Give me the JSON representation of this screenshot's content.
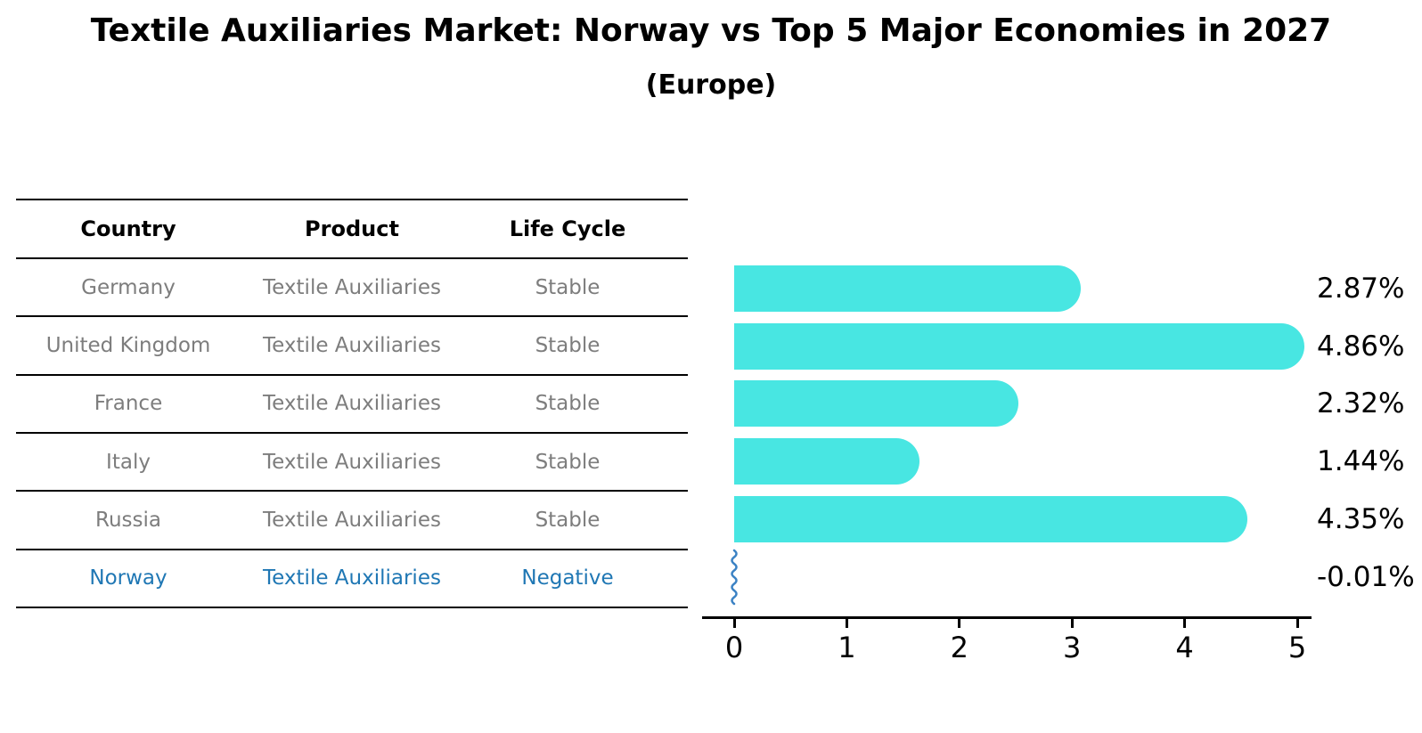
{
  "title": "Textile Auxiliaries Market: Norway vs Top 5 Major Economies in 2027",
  "subtitle": "(Europe)",
  "table": {
    "headers": [
      "Country",
      "Product",
      "Life Cycle"
    ],
    "rows": [
      {
        "country": "Germany",
        "product": "Textile Auxiliaries",
        "life_cycle": "Stable",
        "highlight": false
      },
      {
        "country": "United Kingdom",
        "product": "Textile Auxiliaries",
        "life_cycle": "Stable",
        "highlight": false
      },
      {
        "country": "France",
        "product": "Textile Auxiliaries",
        "life_cycle": "Stable",
        "highlight": false
      },
      {
        "country": "Italy",
        "product": "Textile Auxiliaries",
        "life_cycle": "Stable",
        "highlight": false
      },
      {
        "country": "Russia",
        "product": "Textile Auxiliaries",
        "life_cycle": "Stable",
        "highlight": false
      },
      {
        "country": "Norway",
        "product": "Textile Auxiliaries",
        "life_cycle": "Negative",
        "highlight": true
      }
    ]
  },
  "chart_data": {
    "type": "bar",
    "orientation": "horizontal",
    "title": "Textile Auxiliaries Market: Norway vs Top 5 Major Economies in 2027 (Europe)",
    "categories": [
      "Germany",
      "United Kingdom",
      "France",
      "Italy",
      "Russia",
      "Norway"
    ],
    "values": [
      2.87,
      4.86,
      2.32,
      1.44,
      4.35,
      -0.01
    ],
    "value_labels": [
      "2.87%",
      "4.86%",
      "2.32%",
      "1.44%",
      "4.35%",
      "-0.01%"
    ],
    "xlim": [
      0,
      5
    ],
    "xticks": [
      0,
      1,
      2,
      3,
      4,
      5
    ],
    "xlabel": "",
    "ylabel": "",
    "grid": false,
    "legend_position": "none",
    "bar_color": "#48e6e2",
    "negative_marker": "squiggle",
    "negative_marker_color": "#3b82c4"
  },
  "colors": {
    "table_text": "#7d7d7d",
    "highlight_text": "#1f77b4",
    "axis": "#000000",
    "background": "#ffffff"
  }
}
